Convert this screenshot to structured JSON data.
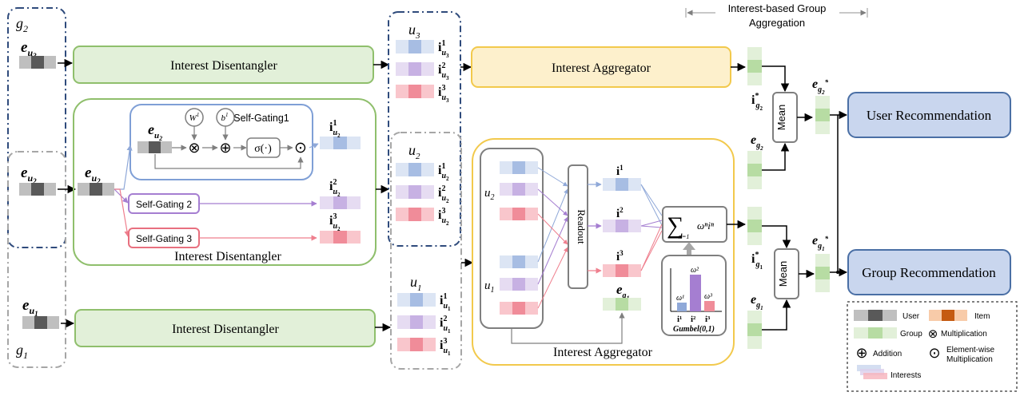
{
  "header": {
    "bracket_label_line1": "Interest-based Group",
    "bracket_label_line2": "Aggregation"
  },
  "groups": {
    "g2": "g",
    "g2_sub": "2",
    "g1": "g",
    "g1_sub": "1"
  },
  "users": {
    "u3": {
      "sym": "e",
      "sub": "u",
      "subsub": "3"
    },
    "u2": {
      "sym": "e",
      "sub": "u",
      "subsub": "2"
    },
    "u1": {
      "sym": "e",
      "sub": "u",
      "subsub": "1"
    }
  },
  "disentangler": {
    "label_u3": "Interest Disentangler",
    "label_u1": "Interest Disentangler",
    "label_big": "Interest Disentangler",
    "self_gating1": "Self-Gating1",
    "self_gating2": "Self-Gating 2",
    "self_gating3": "Self-Gating 3",
    "W": "W",
    "W_sup": "1",
    "b": "b",
    "b_sup": "1",
    "sigma": "σ(·)",
    "otimes": "⊗",
    "oplus": "⊕",
    "odot": "⊙"
  },
  "interest_sets": {
    "u3_title": "u",
    "u3_title_sub": "3",
    "u2_title": "u",
    "u2_title_sub": "2",
    "u1_title": "u",
    "u1_title_sub": "1",
    "i": "i",
    "sup1": "1",
    "sup2": "2",
    "sup3": "3"
  },
  "aggregator": {
    "top_label": "Interest Aggregator",
    "big_label": "Interest Aggregator",
    "readout": "Readout",
    "u2": "u",
    "u2_sub": "2",
    "u1": "u",
    "u1_sub": "1",
    "i": "i",
    "sup1": "1",
    "sup2": "2",
    "sup3": "3",
    "eg": "e",
    "eg_sub": "g",
    "eg_subsub": "1",
    "sum_lower": "n=1",
    "sum_term": "ωⁿiⁿ",
    "omega1": "ω¹",
    "omega2": "ω²",
    "omega3": "ω³",
    "bar_i1": "i¹",
    "bar_i2": "i²",
    "bar_i3": "i³",
    "gumbel": "Gumbel(0,1)"
  },
  "right": {
    "mean1": "Mean",
    "mean2": "Mean",
    "ig2": "i",
    "ig2_sub": "g",
    "ig2_subsub": "2",
    "ig2_sup": "*",
    "eg2": "e",
    "eg2_sub": "g",
    "eg2_subsub": "2",
    "ig1": "i",
    "ig1_sub": "g",
    "ig1_subsub": "1",
    "ig1_sup": "*",
    "eg1": "e",
    "eg1_sub": "g",
    "eg1_subsub": "1",
    "egs2": "e",
    "egs2_sub": "g",
    "egs2_subsub": "2",
    "egs2_sup": "*",
    "egs1": "e",
    "egs1_sub": "g",
    "egs1_subsub": "1",
    "egs1_sup": "*",
    "user_rec": "User Recommendation",
    "group_rec": "Group Recommendation"
  },
  "legend": {
    "user": "User",
    "item": "Item",
    "group": "Group",
    "multiplication": "Multiplication",
    "addition": "Addition",
    "elementwise_line1": "Element-wise",
    "elementwise_line2": "Multiplication",
    "interests": "Interests"
  },
  "colors": {
    "green_fill": "#e2f0d9",
    "green_stroke": "#8fbf6c",
    "yellow_fill": "#fdf0cc",
    "yellow_stroke": "#f2c94c",
    "blue_box": "#d7e1f2",
    "blue_box_stroke": "#4a6fa5",
    "navy_dash": "#2f4b7c",
    "gray_dash": "#a6a6a6",
    "user_gray": "#bfbfbf",
    "user_dark": "#595959",
    "interest_blue": "#c9d6ee",
    "interest_blue_dark": "#8fa8d8",
    "interest_purple": "#dcd0ec",
    "interest_purple_dark": "#b79ad8",
    "interest_red": "#f6b3bb",
    "interest_red_dark": "#ef7f8e",
    "group_green": "#cfe8c4",
    "group_green_dark": "#a9d493",
    "item_orange": "#f8cba9",
    "item_dark": "#c55a11"
  }
}
